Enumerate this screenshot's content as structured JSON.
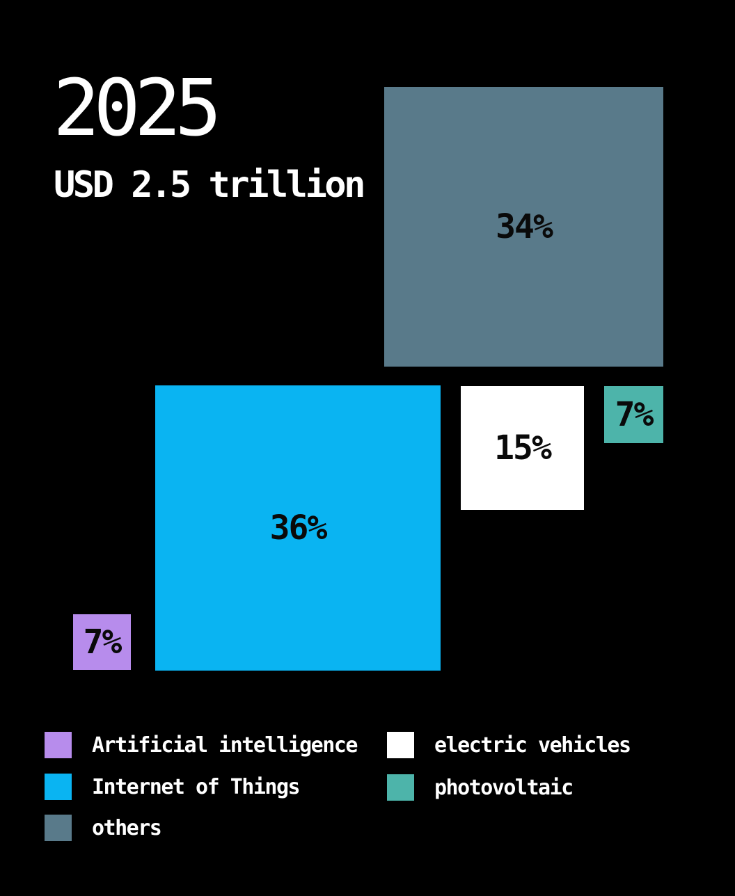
{
  "header": {
    "year": "2025",
    "subtitle": "USD 2.5 trillion"
  },
  "squares": {
    "iot": {
      "label": "36%",
      "color": "#0AB4F2"
    },
    "others": {
      "label": "34%",
      "color": "#597A8A"
    },
    "ev": {
      "label": "15%",
      "color": "#FFFFFF"
    },
    "pv": {
      "label": "7%",
      "color": "#4DB4AA"
    },
    "ai": {
      "label": "7%",
      "color": "#B78CEC"
    }
  },
  "legend": {
    "ai": "Artificial intelligence",
    "iot": "Internet of Things",
    "others": "others",
    "ev": "electric vehicles",
    "pv": "photovoltaic"
  },
  "colors": {
    "background": "#000000",
    "title_text": "#FFFFFF",
    "square_label_text": "#0A0A0A"
  },
  "chart_data": {
    "type": "treemap",
    "title": "2025",
    "subtitle": "USD 2.5 trillion",
    "categories": [
      "Internet of Things",
      "others",
      "electric vehicles",
      "Artificial intelligence",
      "photovoltaic"
    ],
    "values": [
      36,
      34,
      15,
      7,
      7
    ],
    "value_labels": [
      "36%",
      "34%",
      "15%",
      "7%",
      "7%"
    ],
    "series": [
      {
        "name": "Internet of Things",
        "value": 36,
        "label": "36%",
        "color": "#0AB4F2"
      },
      {
        "name": "others",
        "value": 34,
        "label": "34%",
        "color": "#597A8A"
      },
      {
        "name": "electric vehicles",
        "value": 15,
        "label": "15%",
        "color": "#FFFFFF"
      },
      {
        "name": "Artificial intelligence",
        "value": 7,
        "label": "7%",
        "color": "#B78CEC"
      },
      {
        "name": "photovoltaic",
        "value": 7,
        "label": "7%",
        "color": "#4DB4AA"
      }
    ],
    "legend_position": "bottom",
    "grid": false,
    "background": "#000000"
  }
}
